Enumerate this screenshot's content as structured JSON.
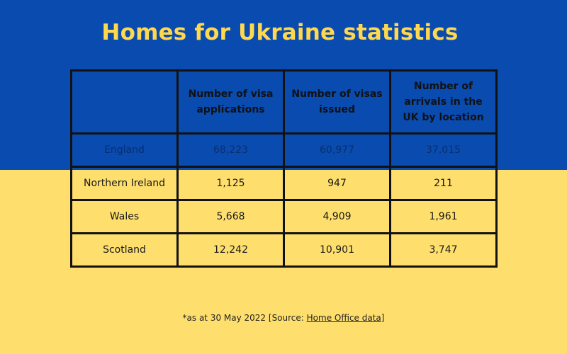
{
  "title": "Homes for Ukraine statistics",
  "colors": {
    "top_band": "#0a4bb0",
    "bottom_band": "#fedf6d",
    "title_text": "#ffd84e",
    "grid": "#111111"
  },
  "table": {
    "headers": [
      "",
      "Number of visa applications",
      "Number of visas issued",
      "Number of arrivals in the UK by location"
    ],
    "rows": [
      {
        "location": "England",
        "applications": "68,223",
        "issued": "60,977",
        "arrivals": "37,015"
      },
      {
        "location": "Northern Ireland",
        "applications": "1,125",
        "issued": "947",
        "arrivals": "211"
      },
      {
        "location": "Wales",
        "applications": "5,668",
        "issued": "4,909",
        "arrivals": "1,961"
      },
      {
        "location": "Scotland",
        "applications": "12,242",
        "issued": "10,901",
        "arrivals": "3,747"
      }
    ]
  },
  "footnote": {
    "prefix": "*as at 30 May 2022 [Source: ",
    "link_text": "Home Office data",
    "suffix": "]"
  }
}
